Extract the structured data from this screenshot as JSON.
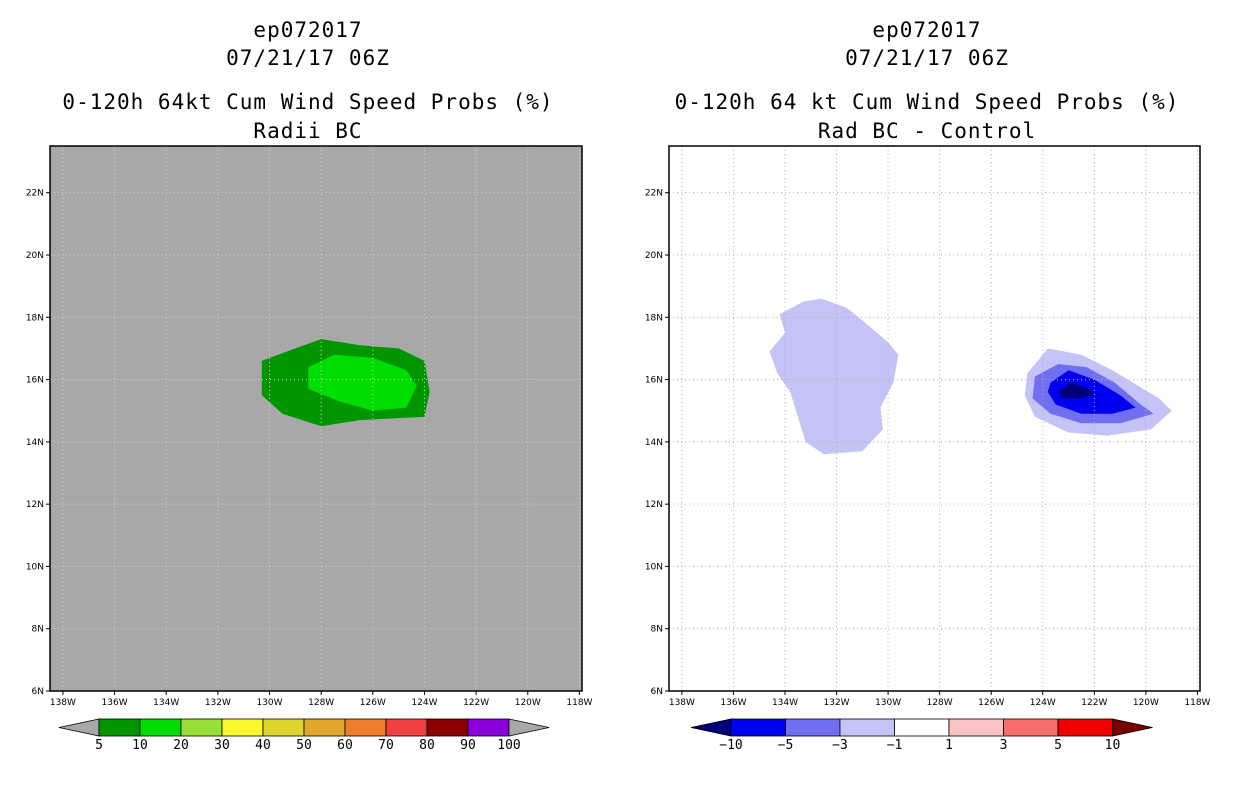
{
  "left": {
    "header": {
      "storm": "ep072017",
      "date": "07/21/17 06Z",
      "title": "0-120h 64kt Cum Wind Speed Probs (%)",
      "subtitle": "Radii BC"
    },
    "colorbar": {
      "labels": [
        "5",
        "10",
        "20",
        "30",
        "40",
        "50",
        "60",
        "70",
        "80",
        "90",
        "100"
      ],
      "colors": [
        "#019500",
        "#00dd00",
        "#99e036",
        "#f9f92c",
        "#dfd42b",
        "#e3a62c",
        "#ec7d2a",
        "#f04040",
        "#8b0000",
        "#8b00dd"
      ],
      "end_color": "#a8a8a8"
    }
  },
  "right": {
    "header": {
      "storm": "ep072017",
      "date": "07/21/17 06Z",
      "title": "0-120h 64 kt Cum Wind Speed Probs (%)",
      "subtitle": "Rad BC - Control"
    },
    "colorbar": {
      "labels": [
        "−10",
        "−5",
        "−3",
        "−1",
        "1",
        "3",
        "5",
        "10"
      ],
      "colors": [
        "#0000f0",
        "#6f6ff0",
        "#c3c3f6",
        "#ffffff",
        "#f9c3c3",
        "#f46e6e",
        "#f00000"
      ],
      "end_low": "#00007a",
      "end_high": "#7a0000"
    }
  },
  "chart_data": [
    {
      "type": "heatmap",
      "title": "0-120h 64kt Cum Wind Speed Probs (%)",
      "subtitle": "Radii BC",
      "xlabel": "",
      "ylabel": "",
      "x_ticks": [
        "138W",
        "136W",
        "134W",
        "132W",
        "130W",
        "128W",
        "126W",
        "124W",
        "122W",
        "120W",
        "118W"
      ],
      "y_ticks": [
        "6N",
        "8N",
        "10N",
        "12N",
        "14N",
        "16N",
        "18N",
        "20N",
        "22N"
      ],
      "xlim": [
        -138.5,
        -117.9
      ],
      "ylim": [
        6,
        23.5
      ],
      "background": "#a8a8a8",
      "grid": true,
      "contours": [
        {
          "level": "5-10",
          "color": "#019500",
          "polygon": [
            [
              -130.3,
              16.6
            ],
            [
              -129.0,
              17.0
            ],
            [
              -128.0,
              17.3
            ],
            [
              -126.5,
              17.1
            ],
            [
              -125.0,
              17.0
            ],
            [
              -124.0,
              16.6
            ],
            [
              -123.8,
              15.6
            ],
            [
              -124.0,
              14.8
            ],
            [
              -126.5,
              14.7
            ],
            [
              -128.0,
              14.5
            ],
            [
              -129.5,
              14.9
            ],
            [
              -130.3,
              15.5
            ]
          ]
        },
        {
          "level": "10-20",
          "color": "#00dd00",
          "polygon": [
            [
              -128.5,
              16.4
            ],
            [
              -127.5,
              16.8
            ],
            [
              -126.0,
              16.7
            ],
            [
              -124.7,
              16.3
            ],
            [
              -124.3,
              15.8
            ],
            [
              -124.7,
              15.1
            ],
            [
              -126.0,
              15.0
            ],
            [
              -127.3,
              15.3
            ],
            [
              -128.5,
              15.7
            ]
          ]
        }
      ]
    },
    {
      "type": "heatmap",
      "title": "0-120h 64 kt Cum Wind Speed Probs (%)",
      "subtitle": "Rad BC - Control",
      "xlabel": "",
      "ylabel": "",
      "x_ticks": [
        "138W",
        "136W",
        "134W",
        "132W",
        "130W",
        "128W",
        "126W",
        "124W",
        "122W",
        "120W",
        "118W"
      ],
      "y_ticks": [
        "6N",
        "8N",
        "10N",
        "12N",
        "14N",
        "16N",
        "18N",
        "20N",
        "22N"
      ],
      "xlim": [
        -138.5,
        -117.9
      ],
      "ylim": [
        6,
        23.5
      ],
      "background": "#ffffff",
      "grid": true,
      "contours": [
        {
          "level": "-3 to -1",
          "color": "#c3c3f6",
          "polygon": [
            [
              -134.2,
              18.1
            ],
            [
              -133.3,
              18.5
            ],
            [
              -132.6,
              18.6
            ],
            [
              -131.6,
              18.3
            ],
            [
              -131.0,
              17.9
            ],
            [
              -130.0,
              17.2
            ],
            [
              -129.6,
              16.8
            ],
            [
              -129.8,
              15.9
            ],
            [
              -130.3,
              15.1
            ],
            [
              -130.2,
              14.4
            ],
            [
              -131.0,
              13.7
            ],
            [
              -132.5,
              13.6
            ],
            [
              -133.2,
              14.0
            ],
            [
              -133.5,
              14.8
            ],
            [
              -133.8,
              15.6
            ],
            [
              -134.3,
              16.2
            ],
            [
              -134.6,
              16.9
            ],
            [
              -134.0,
              17.5
            ]
          ]
        },
        {
          "level": "-3 to -1",
          "color": "#c3c3f6",
          "polygon": [
            [
              -124.6,
              16.2
            ],
            [
              -123.8,
              17.0
            ],
            [
              -122.5,
              16.8
            ],
            [
              -121.3,
              16.3
            ],
            [
              -120.3,
              15.8
            ],
            [
              -119.5,
              15.4
            ],
            [
              -119.0,
              15.0
            ],
            [
              -119.8,
              14.4
            ],
            [
              -121.5,
              14.2
            ],
            [
              -123.0,
              14.3
            ],
            [
              -124.3,
              14.8
            ],
            [
              -124.7,
              15.5
            ]
          ]
        },
        {
          "level": "-5 to -3",
          "color": "#6f6ff0",
          "polygon": [
            [
              -124.3,
              16.1
            ],
            [
              -123.4,
              16.5
            ],
            [
              -122.3,
              16.4
            ],
            [
              -121.2,
              15.9
            ],
            [
              -120.2,
              15.2
            ],
            [
              -119.7,
              14.9
            ],
            [
              -121.0,
              14.6
            ],
            [
              -122.5,
              14.6
            ],
            [
              -123.7,
              14.9
            ],
            [
              -124.4,
              15.4
            ]
          ]
        },
        {
          "level": "-10 to -5",
          "color": "#0000f0",
          "polygon": [
            [
              -123.7,
              15.9
            ],
            [
              -123.0,
              16.3
            ],
            [
              -122.0,
              16.0
            ],
            [
              -121.0,
              15.5
            ],
            [
              -120.4,
              15.1
            ],
            [
              -121.3,
              14.9
            ],
            [
              -122.5,
              14.9
            ],
            [
              -123.5,
              15.2
            ],
            [
              -123.8,
              15.6
            ]
          ]
        },
        {
          "level": "< -10",
          "color": "#00007a",
          "polygon": [
            [
              -123.4,
              15.6
            ],
            [
              -122.9,
              15.9
            ],
            [
              -122.2,
              15.7
            ],
            [
              -122.0,
              15.5
            ],
            [
              -122.6,
              15.4
            ],
            [
              -123.2,
              15.4
            ]
          ]
        }
      ]
    }
  ]
}
